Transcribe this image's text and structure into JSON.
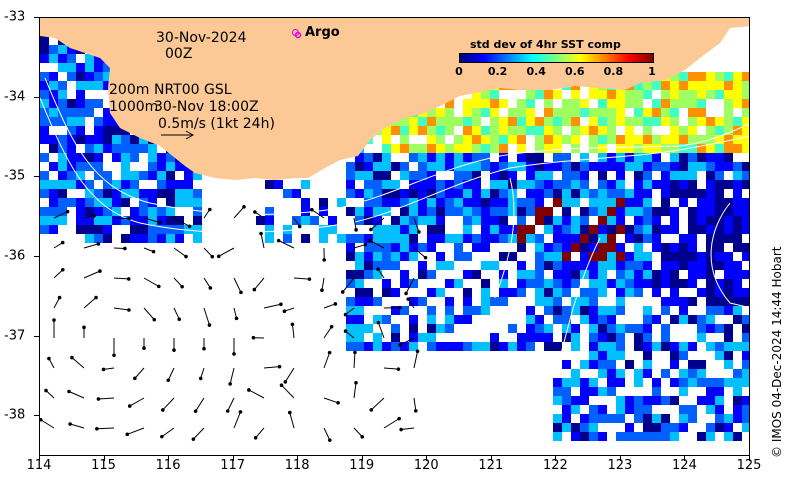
{
  "map": {
    "x_ticks": [
      "114",
      "115",
      "116",
      "117",
      "118",
      "119",
      "120",
      "121",
      "122",
      "123",
      "124",
      "125"
    ],
    "y_ticks": [
      "-33",
      "-34",
      "-35",
      "-36",
      "-37",
      "-38"
    ],
    "lon_range": [
      114,
      125
    ],
    "lat_range": [
      -38.5,
      -33
    ],
    "land_color": "#fbc896",
    "contour_color": "#ffffff"
  },
  "annotations": {
    "date": "30-Nov-2024",
    "hour": "00Z",
    "contour_200": "200m",
    "contour_1000": "1000m",
    "product": "NRT00 GSL",
    "product_time": "30-Nov 18:00Z",
    "vector_scale": "0.5m/s (1kt 24h)"
  },
  "legend": {
    "argo_label": "Argo",
    "argo_color": "#e000e0"
  },
  "colorbar": {
    "title": "std dev of 4hr SST comp",
    "ticks": [
      "0",
      "0.2",
      "0.4",
      "0.6",
      "0.8",
      "1"
    ],
    "range": [
      0,
      1
    ]
  },
  "credit": "© IMOS 04-Dec-2024 14:44 Hobart"
}
